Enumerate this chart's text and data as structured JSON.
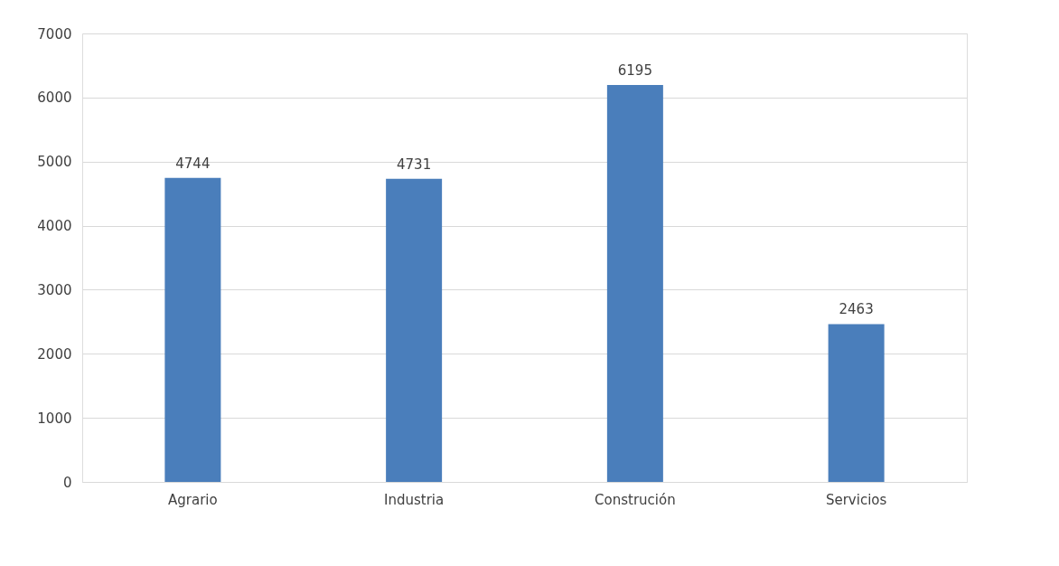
{
  "chart_data": {
    "type": "bar",
    "categories": [
      "Agrario",
      "Industria",
      "Construción",
      "Servicios"
    ],
    "values": [
      4744,
      4731,
      6195,
      2463
    ],
    "color": "#4a7ebb",
    "ylim": [
      0,
      7000
    ],
    "yticks": [
      0,
      1000,
      2000,
      3000,
      4000,
      5000,
      6000,
      7000
    ],
    "grid": "y",
    "data_labels": true
  }
}
